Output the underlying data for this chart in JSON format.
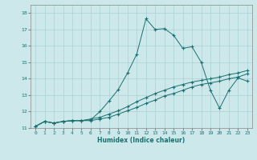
{
  "xlabel": "Humidex (Indice chaleur)",
  "bg_color": "#cce8ea",
  "line_color": "#1a7070",
  "grid_color": "#aad0d4",
  "xlim": [
    -0.5,
    23.5
  ],
  "ylim": [
    11,
    18.5
  ],
  "xticks": [
    0,
    1,
    2,
    3,
    4,
    5,
    6,
    7,
    8,
    9,
    10,
    11,
    12,
    13,
    14,
    15,
    16,
    17,
    18,
    19,
    20,
    21,
    22,
    23
  ],
  "yticks": [
    11,
    12,
    13,
    14,
    15,
    16,
    17,
    18
  ],
  "line1_x": [
    0,
    1,
    2,
    3,
    4,
    5,
    6,
    7,
    8,
    9,
    10,
    11,
    12,
    13,
    14,
    15,
    16,
    17,
    18,
    19,
    20,
    21,
    22,
    23
  ],
  "line1_y": [
    11.1,
    11.4,
    11.3,
    11.4,
    11.45,
    11.45,
    11.45,
    11.55,
    11.65,
    11.85,
    12.05,
    12.25,
    12.5,
    12.7,
    12.95,
    13.1,
    13.3,
    13.5,
    13.65,
    13.75,
    13.85,
    14.0,
    14.1,
    14.3
  ],
  "line2_x": [
    0,
    1,
    2,
    3,
    4,
    5,
    6,
    7,
    8,
    9,
    10,
    11,
    12,
    13,
    14,
    15,
    16,
    17,
    18,
    19,
    20,
    21,
    22,
    23
  ],
  "line2_y": [
    11.1,
    11.4,
    11.3,
    11.4,
    11.45,
    11.45,
    11.55,
    11.65,
    11.85,
    12.05,
    12.3,
    12.6,
    12.85,
    13.1,
    13.3,
    13.5,
    13.65,
    13.8,
    13.9,
    14.0,
    14.1,
    14.25,
    14.35,
    14.5
  ],
  "line3_x": [
    0,
    1,
    2,
    3,
    4,
    5,
    6,
    7,
    8,
    9,
    10,
    11,
    12,
    13,
    14,
    15,
    16,
    17,
    18,
    19,
    20,
    21,
    22,
    23
  ],
  "line3_y": [
    11.1,
    11.4,
    11.3,
    11.4,
    11.45,
    11.45,
    11.5,
    12.0,
    12.65,
    13.35,
    14.35,
    15.5,
    17.65,
    17.0,
    17.05,
    16.65,
    15.85,
    15.95,
    15.0,
    13.3,
    12.2,
    13.3,
    14.05,
    13.85
  ],
  "xlabel_fontsize": 5.5,
  "tick_fontsize": 4.5,
  "marker_size": 3.0,
  "line_width": 0.7
}
